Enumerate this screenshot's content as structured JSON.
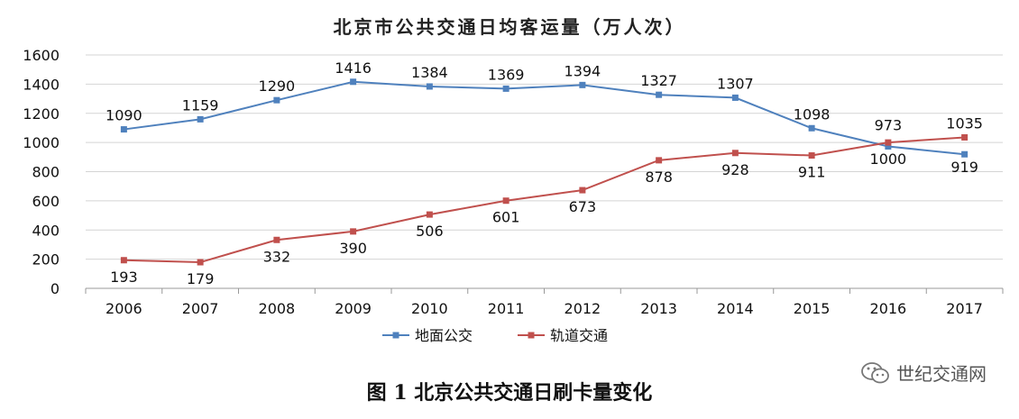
{
  "chart_data": {
    "type": "line",
    "title": "北京市公共交通日均客运量（万人次）",
    "categories": [
      "2006",
      "2007",
      "2008",
      "2009",
      "2010",
      "2011",
      "2012",
      "2013",
      "2014",
      "2015",
      "2016",
      "2017"
    ],
    "series": [
      {
        "name": "地面公交",
        "color": "#4f81bd",
        "values": [
          1090,
          1159,
          1290,
          1416,
          1384,
          1369,
          1394,
          1327,
          1307,
          1098,
          973,
          919
        ]
      },
      {
        "name": "轨道交通",
        "color": "#c0504d",
        "values": [
          193,
          179,
          332,
          390,
          506,
          601,
          673,
          878,
          928,
          911,
          1000,
          1035
        ]
      }
    ],
    "ylim": [
      0,
      1600
    ],
    "yticks": [
      0,
      200,
      400,
      600,
      800,
      1000,
      1200,
      1400,
      1600
    ],
    "grid": true,
    "legend_position": "bottom"
  },
  "caption": "图 1  北京公共交通日刷卡量变化",
  "watermark": {
    "text": "世纪交通网",
    "icon": "wechat-icon"
  }
}
